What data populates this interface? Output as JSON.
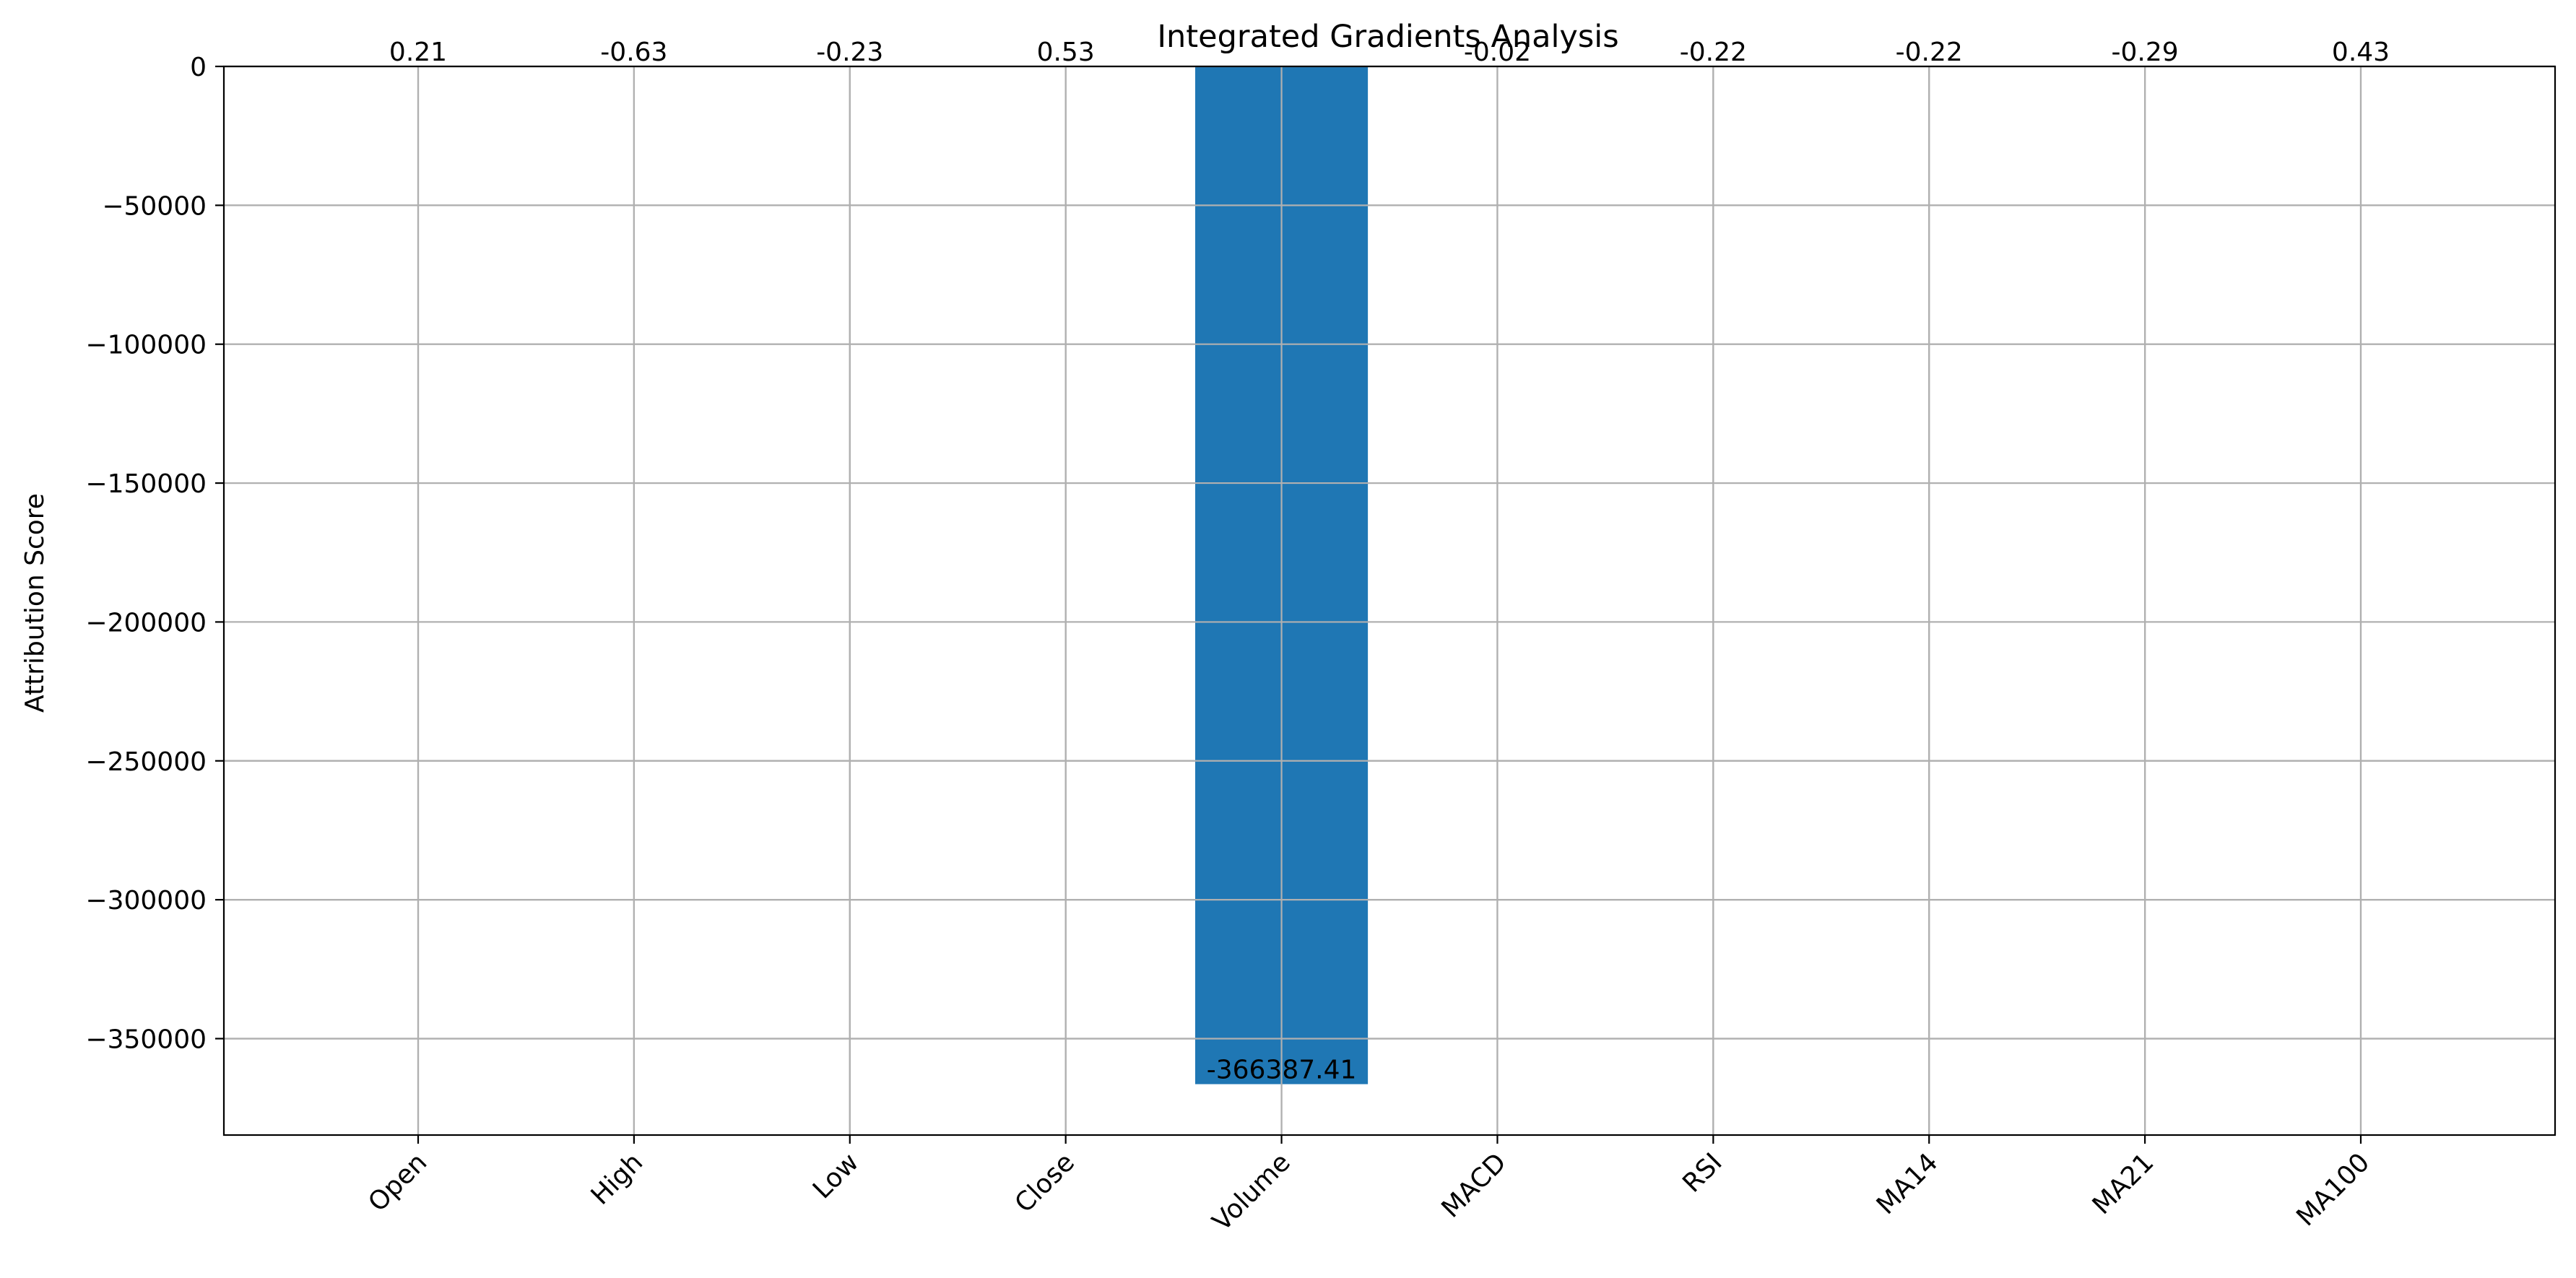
{
  "chart_data": {
    "type": "bar",
    "title": "Integrated Gradients Analysis",
    "xlabel": "",
    "ylabel": "Attribution Score",
    "categories": [
      "Open",
      "High",
      "Low",
      "Close",
      "Volume",
      "MACD",
      "RSI",
      "MA14",
      "MA21",
      "MA100"
    ],
    "values": [
      0.21,
      -0.63,
      -0.23,
      0.53,
      -366387.41,
      -0.02,
      -0.22,
      -0.22,
      -0.29,
      0.43
    ],
    "value_labels": [
      "0.21",
      "-0.63",
      "-0.23",
      "0.53",
      "-366387.41",
      "-0.02",
      "-0.22",
      "-0.22",
      "-0.29",
      "0.43"
    ],
    "ylim": [
      -384706.78,
      0
    ],
    "yticks": [
      0,
      -50000,
      -100000,
      -150000,
      -200000,
      -250000,
      -300000,
      -350000
    ],
    "ytick_labels": [
      "0",
      "−50000",
      "−100000",
      "−150000",
      "−200000",
      "−250000",
      "−300000",
      "−350000"
    ],
    "bar_color": "#1f77b4",
    "grid": true,
    "legend": "none"
  }
}
